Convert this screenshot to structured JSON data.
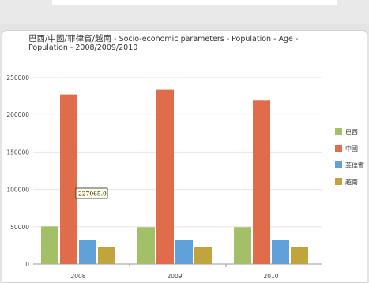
{
  "chart_data": {
    "type": "bar",
    "title_part_zh": "巴西/中國/菲律賓/越南",
    "title_part_en": "Socio-economic parameters - Population - Age - Population - 2008/2009/2010",
    "categories": [
      "2008",
      "2009",
      "2010"
    ],
    "series": [
      {
        "name": "巴西",
        "values": [
          50500,
          49500,
          49500
        ],
        "color": "#a3c069"
      },
      {
        "name": "中國",
        "values": [
          227065,
          233500,
          219000
        ],
        "color": "#e06c4c"
      },
      {
        "name": "菲律賓",
        "values": [
          32000,
          32000,
          32000
        ],
        "color": "#5fa1d8"
      },
      {
        "name": "越南",
        "values": [
          22500,
          22500,
          22500
        ],
        "color": "#c2a43c"
      }
    ],
    "ylim": [
      0,
      250000
    ],
    "yticks": [
      0,
      50000,
      100000,
      150000,
      200000,
      250000
    ],
    "ytick_labels": [
      "0",
      "50000",
      "100000",
      "150000",
      "200000",
      "250000"
    ],
    "grid": true,
    "legend": "right",
    "tooltip": {
      "text": "227065.0",
      "series": 1,
      "category": 0
    }
  }
}
